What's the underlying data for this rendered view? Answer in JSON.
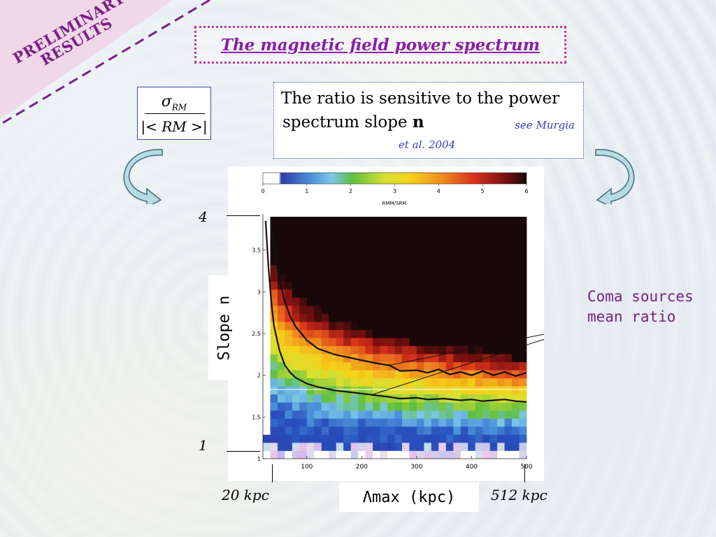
{
  "banner": {
    "line1": "PRELIMINARY",
    "line2": "RESULTS"
  },
  "title": "The magnetic field power spectrum",
  "formula": {
    "numerator": "σ",
    "numerator_sub": "RM",
    "denominator": "|< RM >|"
  },
  "description": {
    "line1": "The ratio is sensitive to the power",
    "line2_prefix": "spectrum slope ",
    "line2_bold": "n",
    "ref_part1": "see Murgia",
    "ref_part2": "et al. 2004"
  },
  "annotation": {
    "line1": "Coma sources",
    "line2": "mean ratio"
  },
  "external_axis": {
    "y_top": "4",
    "y_bottom": "1",
    "x_left": "20 kpc",
    "x_right": "512 kpc",
    "ylabel": "Slope n",
    "xlabel": "Λmax (kpc)"
  },
  "colors": {
    "banner_text": "#7a1f86",
    "title": "#8a1ea8",
    "title_border": "#c0399a",
    "reference": "#3340b8",
    "arrow_fill": "#b8dce6",
    "arrow_stroke": "#3f6b78"
  },
  "chart_data": {
    "type": "heatmap",
    "colorbar": {
      "label": "RMM/SRM",
      "ticks": [
        "0",
        "1",
        "2",
        "3",
        "4",
        "5",
        "6"
      ],
      "range": [
        0,
        6
      ]
    },
    "x_ticks": [
      "100",
      "200",
      "300",
      "400",
      "500"
    ],
    "y_ticks": [
      "1",
      "1.5",
      "2",
      "2.5",
      "3",
      "3.5"
    ],
    "xlim": [
      20,
      500
    ],
    "ylim": [
      1,
      3.9
    ],
    "curves": [
      {
        "x": [
          25,
          30,
          35,
          40,
          50,
          60,
          70,
          80,
          100,
          120,
          150,
          200,
          250,
          270,
          300,
          320,
          350,
          380,
          400,
          420,
          440,
          460,
          480,
          500
        ],
        "y": [
          3.85,
          3.3,
          2.9,
          2.6,
          2.3,
          2.12,
          2.03,
          1.97,
          1.9,
          1.86,
          1.82,
          1.78,
          1.74,
          1.72,
          1.73,
          1.71,
          1.72,
          1.7,
          1.71,
          1.69,
          1.7,
          1.71,
          1.69,
          1.68
        ]
      },
      {
        "x": [
          35,
          40,
          50,
          60,
          70,
          80,
          100,
          120,
          150,
          200,
          230,
          250,
          270,
          300,
          320,
          340,
          360,
          380,
          400,
          420,
          440,
          460,
          480,
          500
        ],
        "y": [
          3.85,
          3.55,
          3.15,
          2.88,
          2.7,
          2.58,
          2.42,
          2.32,
          2.25,
          2.18,
          2.14,
          2.12,
          2.05,
          2.06,
          2.03,
          2.07,
          2.01,
          2.04,
          2.0,
          2.05,
          2.0,
          2.04,
          1.99,
          2.03
        ]
      }
    ],
    "reference_line_y": 1.83,
    "ratio_model": "ratio increases with Λmax and with slope n; low values (<0.5) at n≈1, saturating (>6) for n>3 at large Λmax"
  }
}
